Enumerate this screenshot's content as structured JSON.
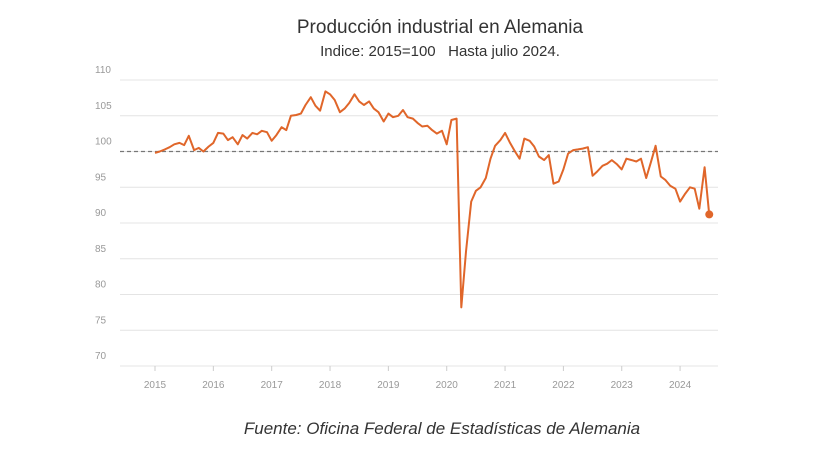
{
  "chart_data": {
    "type": "line",
    "title": "Producción industrial en Alemania",
    "subtitle": "Indice: 2015=100   Hasta julio 2024.",
    "source": "Fuente: Oficina Federal de Estadísticas de Alemania",
    "x": [
      2015,
      2015.08,
      2015.17,
      2015.25,
      2015.33,
      2015.42,
      2015.5,
      2015.58,
      2015.67,
      2015.75,
      2015.83,
      2015.92,
      2016,
      2016.08,
      2016.17,
      2016.25,
      2016.33,
      2016.42,
      2016.5,
      2016.58,
      2016.67,
      2016.75,
      2016.83,
      2016.92,
      2017,
      2017.08,
      2017.17,
      2017.25,
      2017.33,
      2017.42,
      2017.5,
      2017.58,
      2017.67,
      2017.75,
      2017.83,
      2017.92,
      2018,
      2018.08,
      2018.17,
      2018.25,
      2018.33,
      2018.42,
      2018.5,
      2018.58,
      2018.67,
      2018.75,
      2018.83,
      2018.92,
      2019,
      2019.08,
      2019.17,
      2019.25,
      2019.33,
      2019.42,
      2019.5,
      2019.58,
      2019.67,
      2019.75,
      2019.83,
      2019.92,
      2020,
      2020.08,
      2020.17,
      2020.25,
      2020.33,
      2020.42,
      2020.5,
      2020.58,
      2020.67,
      2020.75,
      2020.83,
      2020.92,
      2021,
      2021.08,
      2021.17,
      2021.25,
      2021.33,
      2021.42,
      2021.5,
      2021.58,
      2021.67,
      2021.75,
      2021.83,
      2021.92,
      2022,
      2022.08,
      2022.17,
      2022.25,
      2022.33,
      2022.42,
      2022.5,
      2022.58,
      2022.67,
      2022.75,
      2022.83,
      2022.92,
      2023,
      2023.08,
      2023.17,
      2023.25,
      2023.33,
      2023.42,
      2023.5,
      2023.58,
      2023.67,
      2023.75,
      2023.83,
      2023.92,
      2024,
      2024.08,
      2024.17,
      2024.25,
      2024.33,
      2024.42,
      2024.5
    ],
    "series": [
      {
        "name": "Producción industrial",
        "color": "#e0662a",
        "values": [
          99.8,
          100.0,
          100.3,
          100.6,
          101.0,
          101.2,
          100.9,
          102.2,
          100.2,
          100.5,
          100.0,
          100.7,
          101.2,
          102.6,
          102.5,
          101.6,
          102.0,
          101.0,
          102.3,
          101.8,
          102.6,
          102.4,
          102.9,
          102.7,
          101.5,
          102.3,
          103.4,
          103.0,
          105.0,
          105.1,
          105.3,
          106.5,
          107.6,
          106.4,
          105.7,
          108.4,
          108.0,
          107.2,
          105.5,
          106.0,
          106.8,
          108.0,
          107.0,
          106.5,
          107.0,
          106.0,
          105.5,
          104.2,
          105.3,
          104.8,
          105.0,
          105.8,
          104.8,
          104.6,
          104.0,
          103.5,
          103.6,
          103.0,
          102.5,
          102.9,
          101.0,
          104.4,
          104.6,
          78.2,
          86.0,
          93.0,
          94.5,
          95.0,
          96.3,
          99.0,
          100.8,
          101.6,
          102.6,
          101.3,
          100.0,
          99.0,
          101.8,
          101.5,
          100.7,
          99.3,
          98.8,
          99.5,
          95.5,
          95.8,
          97.5,
          99.7,
          100.2,
          100.3,
          100.4,
          100.6,
          96.6,
          97.2,
          98.0,
          98.3,
          98.8,
          98.2,
          97.5,
          99.0,
          98.8,
          98.6,
          99.0,
          96.3,
          98.5,
          100.8,
          96.5,
          96.0,
          95.2,
          94.8,
          93.0,
          94.0,
          95.0,
          94.8,
          92.0,
          97.8,
          91.2
        ]
      }
    ],
    "xlim": [
      2014.4,
      2024.65
    ],
    "xticks": [
      2015,
      2016,
      2017,
      2018,
      2019,
      2020,
      2021,
      2022,
      2023,
      2024
    ],
    "ylim": [
      70,
      110
    ],
    "yticks": [
      70,
      75,
      80,
      85,
      90,
      95,
      100,
      105,
      110
    ],
    "grid": true,
    "reference_line": 100,
    "end_marker": true
  }
}
